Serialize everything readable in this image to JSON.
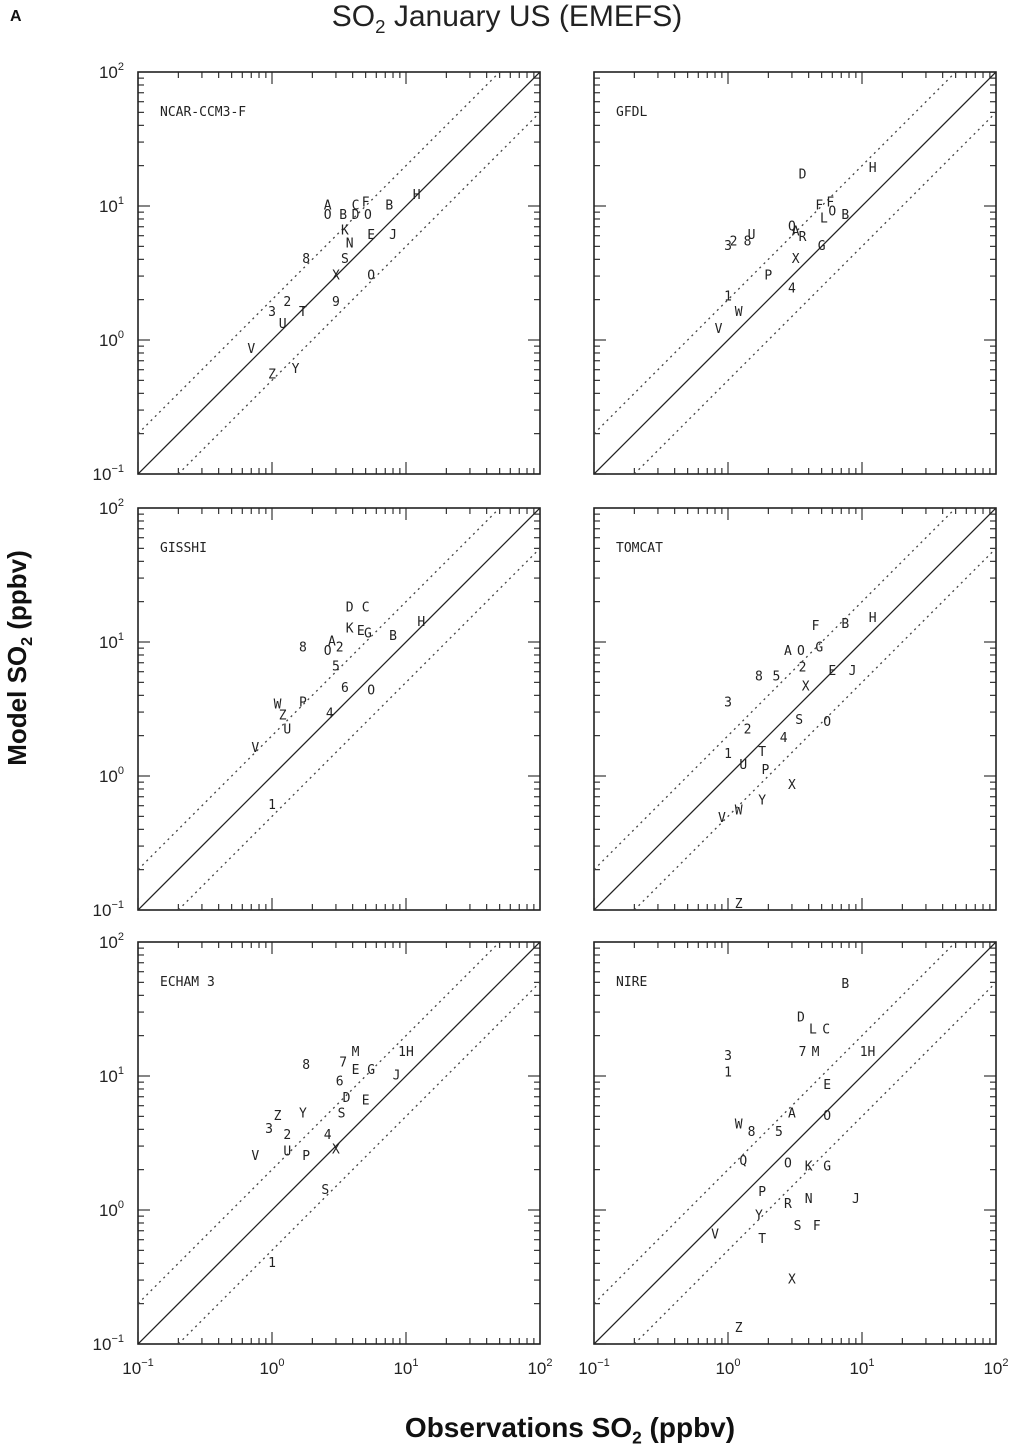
{
  "figure": {
    "panel_letter": "A",
    "title_main": "SO",
    "title_sub": "2",
    "title_rest": " January US (EMEFS)",
    "ylabel_main": "Model SO",
    "ylabel_sub": "2",
    "ylabel_rest": " (ppbv)",
    "xlabel_main": "Observations SO",
    "xlabel_sub": "2",
    "xlabel_rest": " (ppbv)"
  },
  "axis_ticks": {
    "x": [
      {
        "base": "10",
        "exp": "−1"
      },
      {
        "base": "10",
        "exp": "0"
      },
      {
        "base": "10",
        "exp": "1"
      },
      {
        "base": "10",
        "exp": "2"
      }
    ],
    "y": [
      {
        "base": "10",
        "exp": "−1"
      },
      {
        "base": "10",
        "exp": "0"
      },
      {
        "base": "10",
        "exp": "1"
      },
      {
        "base": "10",
        "exp": "2"
      }
    ]
  },
  "chart_data": [
    {
      "type": "scatter",
      "title": "NCAR-CCM3-F",
      "xscale": "log",
      "yscale": "log",
      "xlim": [
        0.1,
        100
      ],
      "ylim": [
        0.1,
        100
      ],
      "reference_lines": [
        "1:1",
        "factor of 2"
      ],
      "points": [
        {
          "label": "A",
          "x": 2.6,
          "y": 10.0
        },
        {
          "label": "O",
          "x": 2.6,
          "y": 8.5
        },
        {
          "label": "B",
          "x": 3.4,
          "y": 8.5
        },
        {
          "label": "C",
          "x": 4.2,
          "y": 10.0
        },
        {
          "label": "F",
          "x": 5.0,
          "y": 10.5
        },
        {
          "label": "D",
          "x": 4.2,
          "y": 8.5
        },
        {
          "label": "O",
          "x": 5.2,
          "y": 8.5
        },
        {
          "label": "B",
          "x": 7.5,
          "y": 10.0
        },
        {
          "label": "H",
          "x": 12.0,
          "y": 12.0
        },
        {
          "label": "K",
          "x": 3.5,
          "y": 6.5
        },
        {
          "label": "N",
          "x": 3.8,
          "y": 5.2
        },
        {
          "label": "E",
          "x": 5.5,
          "y": 6.0
        },
        {
          "label": "J",
          "x": 8.0,
          "y": 6.0
        },
        {
          "label": "8",
          "x": 1.8,
          "y": 4.0
        },
        {
          "label": "S",
          "x": 3.5,
          "y": 4.0
        },
        {
          "label": "X",
          "x": 3.0,
          "y": 3.0
        },
        {
          "label": "O",
          "x": 5.5,
          "y": 3.0
        },
        {
          "label": "9",
          "x": 3.0,
          "y": 1.9
        },
        {
          "label": "2",
          "x": 1.3,
          "y": 1.9
        },
        {
          "label": "3",
          "x": 1.0,
          "y": 1.6
        },
        {
          "label": "T",
          "x": 1.7,
          "y": 1.6
        },
        {
          "label": "U",
          "x": 1.2,
          "y": 1.3
        },
        {
          "label": "V",
          "x": 0.7,
          "y": 0.85
        },
        {
          "label": "Z",
          "x": 1.0,
          "y": 0.55
        },
        {
          "label": "Y",
          "x": 1.5,
          "y": 0.6
        }
      ]
    },
    {
      "type": "scatter",
      "title": "GFDL",
      "xscale": "log",
      "yscale": "log",
      "xlim": [
        0.1,
        100
      ],
      "ylim": [
        0.1,
        100
      ],
      "reference_lines": [
        "1:1",
        "factor of 2"
      ],
      "points": [
        {
          "label": "D",
          "x": 3.6,
          "y": 17.0
        },
        {
          "label": "H",
          "x": 12.0,
          "y": 19.0
        },
        {
          "label": "F",
          "x": 4.8,
          "y": 10.0
        },
        {
          "label": "F",
          "x": 5.8,
          "y": 10.5
        },
        {
          "label": "L",
          "x": 5.2,
          "y": 8.0
        },
        {
          "label": "O",
          "x": 6.0,
          "y": 9.0
        },
        {
          "label": "B",
          "x": 7.5,
          "y": 8.5
        },
        {
          "label": "Q",
          "x": 3.0,
          "y": 7.0
        },
        {
          "label": "A",
          "x": 3.2,
          "y": 6.4
        },
        {
          "label": "R",
          "x": 3.6,
          "y": 5.8
        },
        {
          "label": "G",
          "x": 5.0,
          "y": 5.0
        },
        {
          "label": "X",
          "x": 3.2,
          "y": 4.0
        },
        {
          "label": "U",
          "x": 1.5,
          "y": 6.0
        },
        {
          "label": "3",
          "x": 1.0,
          "y": 5.0
        },
        {
          "label": "2",
          "x": 1.1,
          "y": 5.4
        },
        {
          "label": "8",
          "x": 1.4,
          "y": 5.4
        },
        {
          "label": "P",
          "x": 2.0,
          "y": 3.0
        },
        {
          "label": "4",
          "x": 3.0,
          "y": 2.4
        },
        {
          "label": "1",
          "x": 1.0,
          "y": 2.1
        },
        {
          "label": "W",
          "x": 1.2,
          "y": 1.6
        },
        {
          "label": "V",
          "x": 0.85,
          "y": 1.2
        }
      ]
    },
    {
      "type": "scatter",
      "title": "GISSHI",
      "xscale": "log",
      "yscale": "log",
      "xlim": [
        0.1,
        100
      ],
      "ylim": [
        0.1,
        100
      ],
      "reference_lines": [
        "1:1",
        "factor of 2"
      ],
      "points": [
        {
          "label": "D",
          "x": 3.8,
          "y": 18.0
        },
        {
          "label": "C",
          "x": 5.0,
          "y": 18.0
        },
        {
          "label": "K",
          "x": 3.8,
          "y": 12.5
        },
        {
          "label": "E",
          "x": 4.6,
          "y": 12.0
        },
        {
          "label": "G",
          "x": 5.2,
          "y": 11.5
        },
        {
          "label": "B",
          "x": 8.0,
          "y": 11.0
        },
        {
          "label": "H",
          "x": 13.0,
          "y": 14.0
        },
        {
          "label": "A",
          "x": 2.8,
          "y": 10.0
        },
        {
          "label": "8",
          "x": 1.7,
          "y": 9.0
        },
        {
          "label": "O",
          "x": 2.6,
          "y": 8.5
        },
        {
          "label": "2",
          "x": 3.2,
          "y": 9.0
        },
        {
          "label": "5",
          "x": 3.0,
          "y": 6.5
        },
        {
          "label": "6",
          "x": 3.5,
          "y": 4.5
        },
        {
          "label": "O",
          "x": 5.5,
          "y": 4.3
        },
        {
          "label": "4",
          "x": 2.7,
          "y": 2.9
        },
        {
          "label": "W",
          "x": 1.1,
          "y": 3.4
        },
        {
          "label": "P",
          "x": 1.7,
          "y": 3.5
        },
        {
          "label": "Z",
          "x": 1.2,
          "y": 2.8
        },
        {
          "label": "U",
          "x": 1.3,
          "y": 2.2
        },
        {
          "label": "V",
          "x": 0.75,
          "y": 1.6
        },
        {
          "label": "1",
          "x": 1.0,
          "y": 0.6
        }
      ]
    },
    {
      "type": "scatter",
      "title": "TOMCAT",
      "xscale": "log",
      "yscale": "log",
      "xlim": [
        0.1,
        100
      ],
      "ylim": [
        0.1,
        100
      ],
      "reference_lines": [
        "1:1",
        "factor of 2"
      ],
      "points": [
        {
          "label": "F",
          "x": 4.5,
          "y": 13.0
        },
        {
          "label": "B",
          "x": 7.5,
          "y": 13.5
        },
        {
          "label": "H",
          "x": 12.0,
          "y": 15.0
        },
        {
          "label": "A",
          "x": 2.8,
          "y": 8.5
        },
        {
          "label": "O",
          "x": 3.5,
          "y": 8.5
        },
        {
          "label": "G",
          "x": 4.8,
          "y": 9.0
        },
        {
          "label": "2",
          "x": 3.6,
          "y": 6.4
        },
        {
          "label": "E",
          "x": 6.0,
          "y": 6.0
        },
        {
          "label": "J",
          "x": 8.5,
          "y": 6.0
        },
        {
          "label": "8",
          "x": 1.7,
          "y": 5.5
        },
        {
          "label": "5",
          "x": 2.3,
          "y": 5.5
        },
        {
          "label": "X",
          "x": 3.8,
          "y": 4.6
        },
        {
          "label": "S",
          "x": 3.4,
          "y": 2.6
        },
        {
          "label": "O",
          "x": 5.5,
          "y": 2.5
        },
        {
          "label": "3",
          "x": 1.0,
          "y": 3.5
        },
        {
          "label": "2",
          "x": 1.4,
          "y": 2.2
        },
        {
          "label": "4",
          "x": 2.6,
          "y": 1.9
        },
        {
          "label": "1",
          "x": 1.0,
          "y": 1.45
        },
        {
          "label": "T",
          "x": 1.8,
          "y": 1.5
        },
        {
          "label": "U",
          "x": 1.3,
          "y": 1.2
        },
        {
          "label": "P",
          "x": 1.9,
          "y": 1.1
        },
        {
          "label": "X",
          "x": 3.0,
          "y": 0.85
        },
        {
          "label": "Y",
          "x": 1.8,
          "y": 0.65
        },
        {
          "label": "W",
          "x": 1.2,
          "y": 0.55
        },
        {
          "label": "V",
          "x": 0.9,
          "y": 0.48
        },
        {
          "label": "Z",
          "x": 1.2,
          "y": 0.11
        }
      ]
    },
    {
      "type": "scatter",
      "title": "ECHAM 3",
      "xscale": "log",
      "yscale": "log",
      "xlim": [
        0.1,
        100
      ],
      "ylim": [
        0.1,
        100
      ],
      "reference_lines": [
        "1:1",
        "factor of 2"
      ],
      "points": [
        {
          "label": "M",
          "x": 4.2,
          "y": 15.0
        },
        {
          "label": "1H",
          "x": 10.0,
          "y": 15.0
        },
        {
          "label": "8",
          "x": 1.8,
          "y": 12.0
        },
        {
          "label": "7",
          "x": 3.4,
          "y": 12.5
        },
        {
          "label": "E",
          "x": 4.2,
          "y": 11.0
        },
        {
          "label": "G",
          "x": 5.5,
          "y": 11.0
        },
        {
          "label": "J",
          "x": 8.5,
          "y": 10.0
        },
        {
          "label": "6",
          "x": 3.2,
          "y": 9.0
        },
        {
          "label": "D",
          "x": 3.6,
          "y": 6.8
        },
        {
          "label": "E",
          "x": 5.0,
          "y": 6.5
        },
        {
          "label": "S",
          "x": 3.3,
          "y": 5.2
        },
        {
          "label": "Z",
          "x": 1.1,
          "y": 5.0
        },
        {
          "label": "Y",
          "x": 1.7,
          "y": 5.2
        },
        {
          "label": "3",
          "x": 0.95,
          "y": 4.0
        },
        {
          "label": "2",
          "x": 1.3,
          "y": 3.6
        },
        {
          "label": "4",
          "x": 2.6,
          "y": 3.6
        },
        {
          "label": "X",
          "x": 3.0,
          "y": 2.8
        },
        {
          "label": "V",
          "x": 0.75,
          "y": 2.5
        },
        {
          "label": "U",
          "x": 1.3,
          "y": 2.7
        },
        {
          "label": "P",
          "x": 1.8,
          "y": 2.5
        },
        {
          "label": "S",
          "x": 2.5,
          "y": 1.4
        },
        {
          "label": "1",
          "x": 1.0,
          "y": 0.4
        }
      ]
    },
    {
      "type": "scatter",
      "title": "NIRE",
      "xscale": "log",
      "yscale": "log",
      "xlim": [
        0.1,
        100
      ],
      "ylim": [
        0.1,
        100
      ],
      "reference_lines": [
        "1:1",
        "factor of 2"
      ],
      "points": [
        {
          "label": "B",
          "x": 7.5,
          "y": 48.0
        },
        {
          "label": "D",
          "x": 3.5,
          "y": 27.0
        },
        {
          "label": "L",
          "x": 4.3,
          "y": 22.0
        },
        {
          "label": "C",
          "x": 5.4,
          "y": 22.0
        },
        {
          "label": "7",
          "x": 3.6,
          "y": 15.0
        },
        {
          "label": "M",
          "x": 4.5,
          "y": 15.0
        },
        {
          "label": "1H",
          "x": 11.0,
          "y": 15.0
        },
        {
          "label": "3",
          "x": 1.0,
          "y": 14.0
        },
        {
          "label": "1",
          "x": 1.0,
          "y": 10.5
        },
        {
          "label": "E",
          "x": 5.5,
          "y": 8.5
        },
        {
          "label": "A",
          "x": 3.0,
          "y": 5.2
        },
        {
          "label": "O",
          "x": 5.5,
          "y": 5.0
        },
        {
          "label": "W",
          "x": 1.2,
          "y": 4.3
        },
        {
          "label": "8",
          "x": 1.5,
          "y": 3.8
        },
        {
          "label": "5",
          "x": 2.4,
          "y": 3.8
        },
        {
          "label": "Q",
          "x": 1.3,
          "y": 2.3
        },
        {
          "label": "O",
          "x": 2.8,
          "y": 2.2
        },
        {
          "label": "K",
          "x": 4.0,
          "y": 2.1
        },
        {
          "label": "G",
          "x": 5.5,
          "y": 2.1
        },
        {
          "label": "P",
          "x": 1.8,
          "y": 1.35
        },
        {
          "label": "R",
          "x": 2.8,
          "y": 1.1
        },
        {
          "label": "N",
          "x": 4.0,
          "y": 1.2
        },
        {
          "label": "J",
          "x": 9.0,
          "y": 1.2
        },
        {
          "label": "Y",
          "x": 1.7,
          "y": 0.9
        },
        {
          "label": "S",
          "x": 3.3,
          "y": 0.75
        },
        {
          "label": "F",
          "x": 4.6,
          "y": 0.75
        },
        {
          "label": "V",
          "x": 0.8,
          "y": 0.65
        },
        {
          "label": "T",
          "x": 1.8,
          "y": 0.6
        },
        {
          "label": "X",
          "x": 3.0,
          "y": 0.3
        },
        {
          "label": "Z",
          "x": 1.2,
          "y": 0.13
        }
      ]
    }
  ]
}
